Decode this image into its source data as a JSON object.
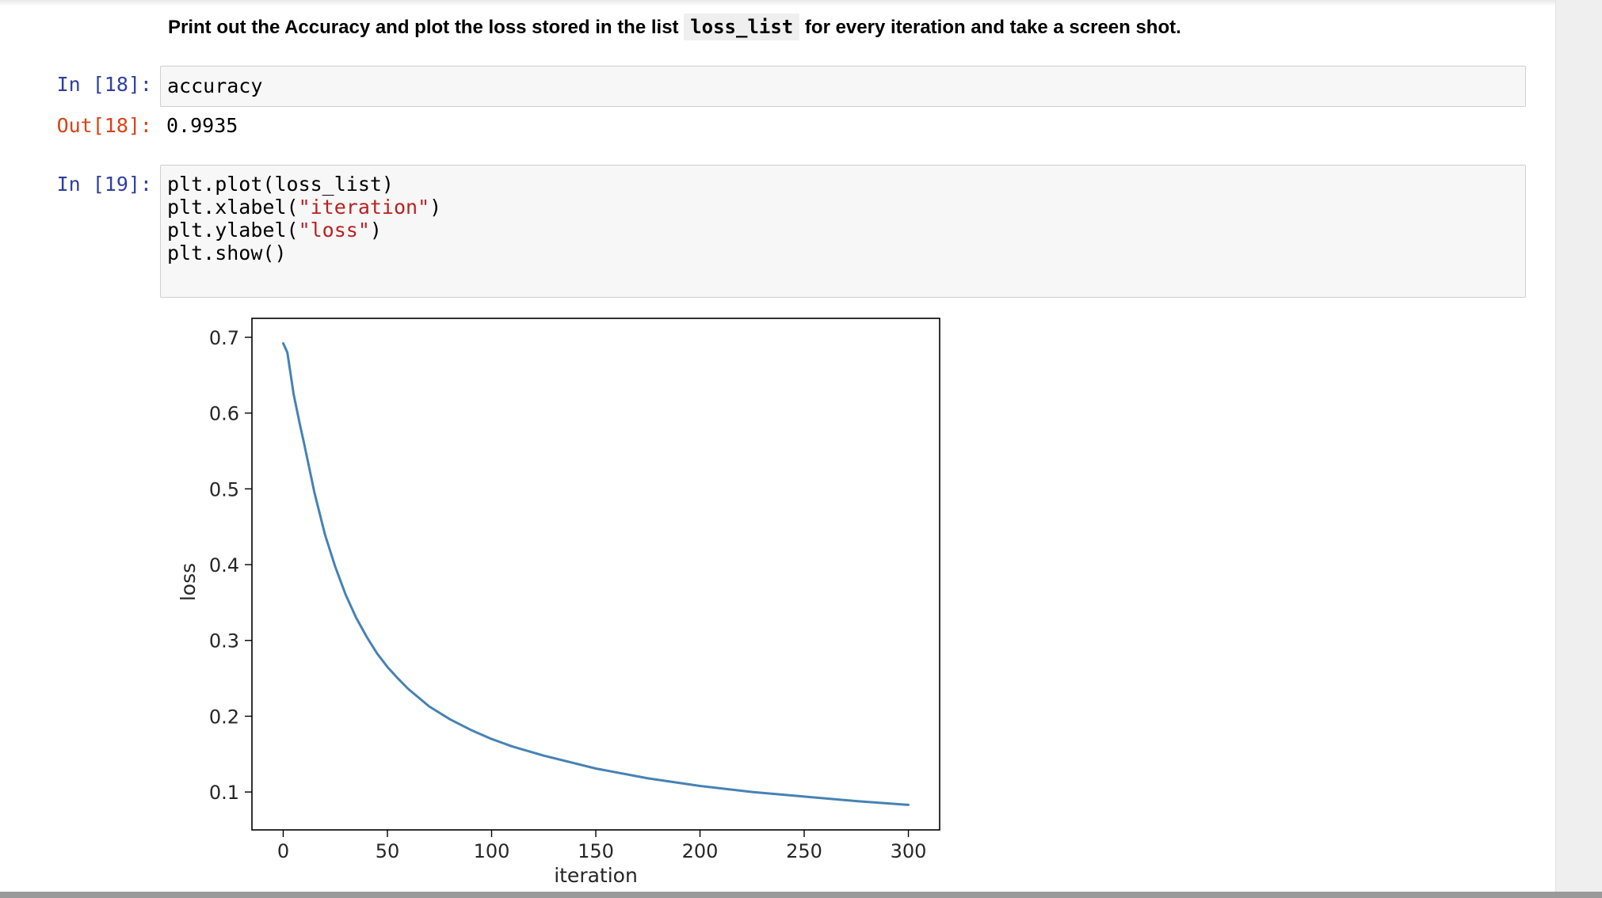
{
  "markdown_cell": {
    "text_before": "Print out the Accuracy and plot the loss stored in the list",
    "code_inline": "loss_list",
    "text_after": "for every iteration and take a screen shot."
  },
  "cells": [
    {
      "in_prompt": "In [18]:",
      "source_lines": [
        "accuracy"
      ],
      "out_prompt": "Out[18]:",
      "output": "0.9935"
    },
    {
      "in_prompt": "In [19]:",
      "source_lines": [
        {
          "pre": "plt.plot(loss_list)",
          "str": "",
          "post": ""
        },
        {
          "pre": "plt.xlabel(",
          "str": "\"iteration\"",
          "post": ")"
        },
        {
          "pre": "plt.ylabel(",
          "str": "\"loss\"",
          "post": ")"
        },
        {
          "pre": "plt.show()",
          "str": "",
          "post": ""
        }
      ]
    }
  ],
  "colors": {
    "in_prompt": "#303f9f",
    "out_prompt": "#d84315",
    "string_literal": "#ba2121",
    "line": "#4682b4"
  },
  "chart_data": {
    "type": "line",
    "xlabel": "iteration",
    "ylabel": "loss",
    "x_ticks": [
      0,
      50,
      100,
      150,
      200,
      250,
      300
    ],
    "y_ticks": [
      0.1,
      0.2,
      0.3,
      0.4,
      0.5,
      0.6,
      0.7
    ],
    "xlim": [
      -15,
      315
    ],
    "ylim": [
      0.05,
      0.725
    ],
    "grid": false,
    "series": [
      {
        "x": [
          0,
          2,
          5,
          8,
          10,
          15,
          20,
          25,
          30,
          35,
          40,
          45,
          50,
          55,
          60,
          70,
          80,
          90,
          100,
          110,
          125,
          150,
          175,
          200,
          225,
          250,
          275,
          300
        ],
        "values": [
          0.692,
          0.68,
          0.625,
          0.585,
          0.56,
          0.495,
          0.44,
          0.397,
          0.36,
          0.33,
          0.305,
          0.283,
          0.265,
          0.25,
          0.236,
          0.213,
          0.196,
          0.182,
          0.17,
          0.16,
          0.148,
          0.131,
          0.118,
          0.108,
          0.1,
          0.094,
          0.088,
          0.083
        ]
      }
    ]
  }
}
